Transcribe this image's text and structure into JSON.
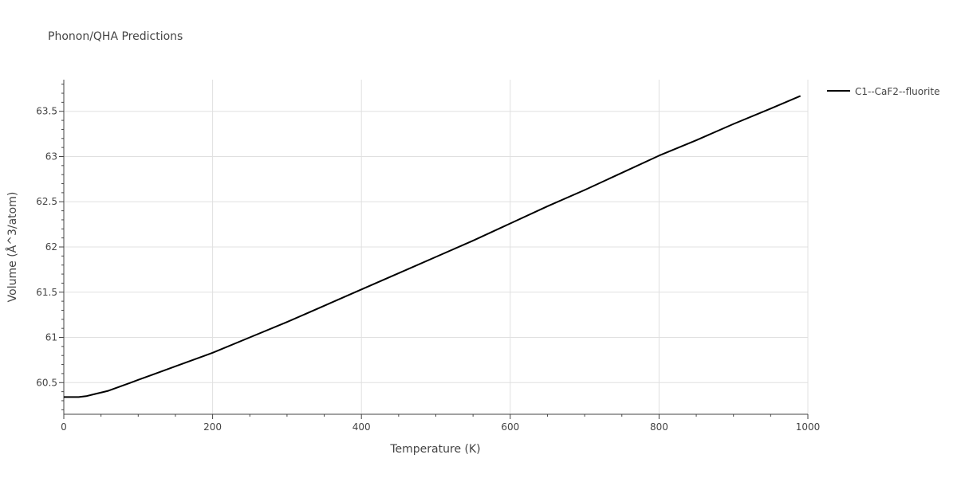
{
  "chart_data": {
    "type": "line",
    "title": "Phonon/QHA Predictions",
    "xlabel": "Temperature (K)",
    "ylabel": "Volume (Å^3/atom)",
    "xlim": [
      0,
      1000
    ],
    "ylim": [
      60.15,
      63.85
    ],
    "x_ticks": [
      0,
      200,
      400,
      600,
      800,
      1000
    ],
    "x_tick_labels": [
      "0",
      "200",
      "400",
      "600",
      "800",
      "1000"
    ],
    "y_ticks": [
      60.5,
      61,
      61.5,
      62,
      62.5,
      63,
      63.5
    ],
    "y_tick_labels": [
      "60.5",
      "61",
      "61.5",
      "62",
      "62.5",
      "63",
      "63.5"
    ],
    "grid": true,
    "legend_position": "top-right",
    "series": [
      {
        "name": "C1--CaF2--fluorite",
        "color": "#000000",
        "x": [
          0,
          10,
          20,
          30,
          40,
          50,
          60,
          70,
          80,
          90,
          100,
          120,
          150,
          200,
          250,
          300,
          350,
          400,
          450,
          500,
          550,
          600,
          650,
          700,
          750,
          800,
          850,
          900,
          950,
          990
        ],
        "y": [
          60.34,
          60.34,
          60.34,
          60.35,
          60.37,
          60.39,
          60.41,
          60.44,
          60.47,
          60.5,
          60.53,
          60.59,
          60.68,
          60.83,
          61.0,
          61.17,
          61.35,
          61.53,
          61.71,
          61.89,
          62.07,
          62.26,
          62.45,
          62.63,
          62.82,
          63.01,
          63.18,
          63.36,
          63.53,
          63.67
        ]
      }
    ]
  }
}
